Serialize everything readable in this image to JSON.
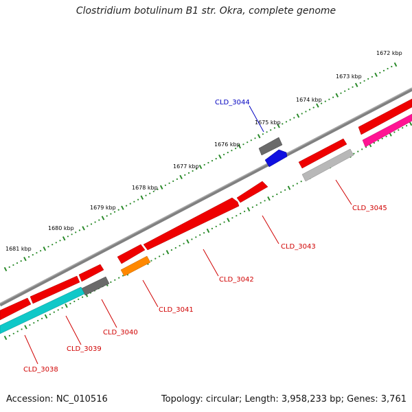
{
  "title": "Clostridium botulinum B1 str. Okra, complete genome",
  "footer": {
    "accession": "Accession: NC_010516",
    "summary": "Topology: circular; Length: 3,958,233 bp; Genes: 3,761"
  },
  "kbp_labels": [
    "1672 kbp",
    "1673 kbp",
    "1674 kbp",
    "1675 kbp",
    "1676 kbp",
    "1677 kbp",
    "1678 kbp",
    "1679 kbp",
    "1680 kbp",
    "1681 kbp"
  ],
  "gene_labels": [
    "CLD_3044",
    "CLD_3045",
    "CLD_3043",
    "CLD_3042",
    "CLD_3041",
    "CLD_3040",
    "CLD_3039",
    "CLD_3038"
  ],
  "colors": {
    "backbone": "#808080",
    "ruler": "#2a8a2a",
    "gene_red": "#ee0000",
    "gene_gray": "#707070",
    "gene_blue": "#1010e0",
    "gene_cyan": "#10c8c8",
    "gene_orange": "#ff8800",
    "gene_pink": "#ff1493",
    "gene_light_gray": "#b8b8b8",
    "label_red": "#d00000",
    "label_blue": "#0000c0"
  }
}
